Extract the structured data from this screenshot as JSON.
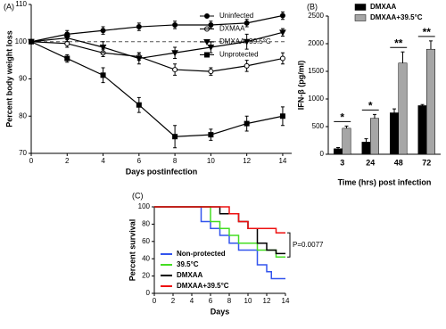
{
  "chart_data": [
    {
      "type": "line",
      "panel_label": "(A)",
      "xlabel": "Days postinfection",
      "ylabel": "Percent body weight loss",
      "x": [
        0,
        2,
        4,
        6,
        8,
        10,
        12,
        14
      ],
      "xlim": [
        0,
        14.5
      ],
      "xticks": [
        0,
        2,
        4,
        6,
        8,
        10,
        12,
        14
      ],
      "ylim": [
        70,
        110
      ],
      "yticks": [
        70,
        80,
        90,
        100,
        110
      ],
      "reference_line": 100,
      "series": [
        {
          "name": "Uninfected",
          "color": "#000000",
          "marker": "filled-circle",
          "values": [
            100,
            102,
            103,
            104,
            104.5,
            104.5,
            105,
            107
          ],
          "errors": [
            0.5,
            1,
            1,
            1,
            1,
            1,
            1,
            1
          ]
        },
        {
          "name": "DXMAA",
          "color": "#000000",
          "marker": "open-circle",
          "values": [
            100,
            99.5,
            97,
            96,
            92.5,
            92,
            93.5,
            95.5
          ],
          "errors": [
            0.5,
            1,
            1,
            1,
            1.5,
            1,
            1.5,
            1.5
          ]
        },
        {
          "name": "DMXAA+39.5°C",
          "color": "#000000",
          "marker": "triangle-down",
          "values": [
            100,
            101,
            98.5,
            95.5,
            97,
            98.5,
            100,
            102.5
          ],
          "errors": [
            0.5,
            1,
            1.5,
            1.5,
            1.5,
            1.5,
            2,
            1
          ]
        },
        {
          "name": "Unprotected",
          "color": "#000000",
          "marker": "filled-square",
          "values": [
            100,
            95.5,
            91,
            83,
            74.5,
            75,
            78,
            80
          ],
          "errors": [
            0.5,
            1,
            2,
            2,
            3,
            1.5,
            2,
            2.5
          ]
        }
      ]
    },
    {
      "type": "bar",
      "panel_label": "(B)",
      "xlabel": "Time (hrs) post infection",
      "ylabel": "IFN-β (pg/ml)",
      "categories": [
        "3",
        "24",
        "48",
        "72"
      ],
      "ylim": [
        0,
        2500
      ],
      "yticks": [
        0,
        500,
        1000,
        1500,
        2000,
        2500
      ],
      "annotations": [
        "*",
        "*",
        "**",
        "**"
      ],
      "series": [
        {
          "name": "DMXAA",
          "color": "#000000",
          "values": [
            100,
            220,
            750,
            880
          ],
          "errors": [
            20,
            60,
            70,
            20
          ]
        },
        {
          "name": "DMXAA+39.5°C",
          "color": "#a6a6a6",
          "values": [
            470,
            650,
            1650,
            1900
          ],
          "errors": [
            40,
            70,
            200,
            150
          ]
        }
      ]
    },
    {
      "type": "step",
      "panel_label": "(C)",
      "xlabel": "Days",
      "ylabel": "Percent survival",
      "xlim": [
        0,
        14
      ],
      "xticks": [
        0,
        2,
        4,
        6,
        8,
        10,
        12,
        14
      ],
      "ylim": [
        0,
        100
      ],
      "yticks": [
        0,
        20,
        40,
        60,
        80,
        100
      ],
      "annotation": "P=0.0077",
      "series": [
        {
          "name": "Non-protected",
          "color": "#3355ee",
          "x": [
            0,
            5,
            6,
            7,
            8,
            9,
            11,
            12,
            12.5,
            14
          ],
          "values": [
            100,
            83,
            75,
            67,
            58,
            50,
            33,
            25,
            17,
            17
          ]
        },
        {
          "name": "39.5°C",
          "color": "#44dd22",
          "x": [
            0,
            6,
            7,
            8,
            9,
            11,
            13,
            14
          ],
          "values": [
            100,
            83,
            75,
            67,
            58,
            50,
            42,
            42
          ]
        },
        {
          "name": "DMXAA",
          "color": "#000000",
          "x": [
            0,
            7,
            9,
            10,
            11,
            12,
            13,
            14
          ],
          "values": [
            100,
            92,
            83,
            75,
            58,
            50,
            46,
            46
          ]
        },
        {
          "name": "DMXAA+39.5°C",
          "color": "#ee1111",
          "x": [
            0,
            8,
            9,
            10,
            13,
            14
          ],
          "values": [
            100,
            92,
            83,
            75,
            70,
            70
          ]
        }
      ]
    }
  ]
}
